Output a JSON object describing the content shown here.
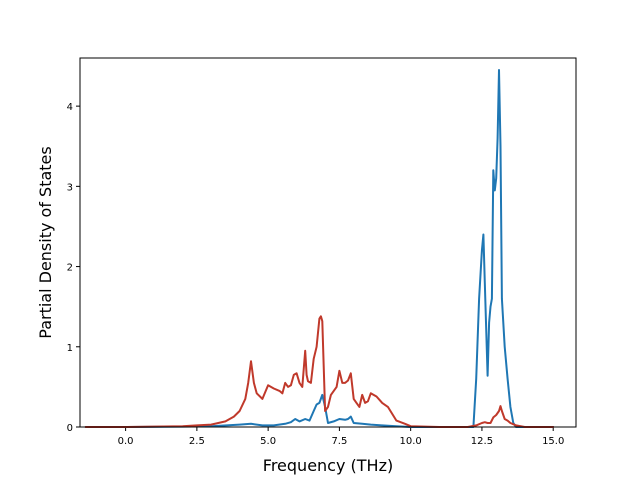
{
  "chart_data": {
    "type": "line",
    "title": "",
    "xlabel": "Frequency (THz)",
    "ylabel": "Partial Density of States",
    "xlim": [
      -1.6,
      15.8
    ],
    "ylim": [
      0,
      4.6
    ],
    "xticks": [
      0.0,
      2.5,
      5.0,
      7.5,
      10.0,
      12.5,
      15.0
    ],
    "xtick_labels": [
      "0.0",
      "2.5",
      "5.0",
      "7.5",
      "10.0",
      "12.5",
      "15.0"
    ],
    "yticks": [
      0,
      1,
      2,
      3,
      4
    ],
    "ytick_labels": [
      "0",
      "1",
      "2",
      "3",
      "4"
    ],
    "grid": false,
    "legend": "none",
    "series": [
      {
        "color": "#1f77b4",
        "x": [
          -1.4,
          0.0,
          2.0,
          3.0,
          4.0,
          4.4,
          4.8,
          5.2,
          5.6,
          5.8,
          5.95,
          6.1,
          6.3,
          6.45,
          6.6,
          6.7,
          6.8,
          6.9,
          7.0,
          7.1,
          7.3,
          7.5,
          7.7,
          7.8,
          7.9,
          8.0,
          8.3,
          8.6,
          9.0,
          9.5,
          10.0,
          10.5,
          11.0,
          11.5,
          12.0,
          12.2,
          12.3,
          12.4,
          12.5,
          12.55,
          12.6,
          12.7,
          12.75,
          12.8,
          12.85,
          12.9,
          12.95,
          13.0,
          13.05,
          13.1,
          13.15,
          13.2,
          13.3,
          13.4,
          13.5,
          13.6,
          13.7,
          14.0,
          15.0
        ],
        "y": [
          0.0,
          0.0,
          0.005,
          0.01,
          0.03,
          0.04,
          0.02,
          0.02,
          0.04,
          0.06,
          0.1,
          0.07,
          0.1,
          0.08,
          0.2,
          0.28,
          0.3,
          0.4,
          0.25,
          0.05,
          0.07,
          0.1,
          0.09,
          0.1,
          0.13,
          0.05,
          0.04,
          0.03,
          0.02,
          0.01,
          0.0,
          0.0,
          0.0,
          0.0,
          0.0,
          0.0,
          0.6,
          1.6,
          2.2,
          2.4,
          1.8,
          0.64,
          1.3,
          1.5,
          1.6,
          3.2,
          2.95,
          3.1,
          3.6,
          4.45,
          3.5,
          1.6,
          1.0,
          0.6,
          0.25,
          0.05,
          0.0,
          0.0,
          0.0
        ]
      },
      {
        "color": "#c0392b",
        "x": [
          -1.4,
          0.0,
          1.0,
          2.0,
          2.5,
          3.0,
          3.5,
          3.8,
          4.0,
          4.2,
          4.3,
          4.4,
          4.5,
          4.6,
          4.8,
          5.0,
          5.2,
          5.4,
          5.5,
          5.6,
          5.7,
          5.8,
          5.9,
          6.0,
          6.1,
          6.2,
          6.3,
          6.35,
          6.4,
          6.5,
          6.6,
          6.7,
          6.8,
          6.85,
          6.9,
          7.0,
          7.1,
          7.2,
          7.4,
          7.5,
          7.6,
          7.7,
          7.8,
          7.9,
          8.0,
          8.1,
          8.2,
          8.3,
          8.4,
          8.5,
          8.6,
          8.7,
          8.8,
          9.0,
          9.2,
          9.5,
          9.8,
          10.0,
          11.0,
          12.0,
          12.3,
          12.5,
          12.6,
          12.7,
          12.8,
          12.9,
          13.0,
          13.1,
          13.15,
          13.2,
          13.3,
          13.4,
          13.5,
          13.7,
          14.0,
          15.0
        ],
        "y": [
          0.0,
          0.0,
          0.005,
          0.01,
          0.02,
          0.03,
          0.07,
          0.13,
          0.2,
          0.35,
          0.55,
          0.82,
          0.55,
          0.42,
          0.35,
          0.52,
          0.48,
          0.45,
          0.42,
          0.55,
          0.5,
          0.52,
          0.65,
          0.67,
          0.55,
          0.5,
          0.95,
          0.65,
          0.57,
          0.55,
          0.85,
          1.0,
          1.35,
          1.38,
          1.32,
          0.2,
          0.25,
          0.4,
          0.5,
          0.7,
          0.55,
          0.55,
          0.58,
          0.67,
          0.35,
          0.3,
          0.25,
          0.4,
          0.3,
          0.32,
          0.42,
          0.4,
          0.38,
          0.3,
          0.25,
          0.08,
          0.04,
          0.01,
          0.0,
          0.0,
          0.02,
          0.05,
          0.06,
          0.05,
          0.05,
          0.12,
          0.15,
          0.2,
          0.26,
          0.2,
          0.1,
          0.08,
          0.05,
          0.02,
          0.0,
          0.0
        ]
      }
    ]
  }
}
